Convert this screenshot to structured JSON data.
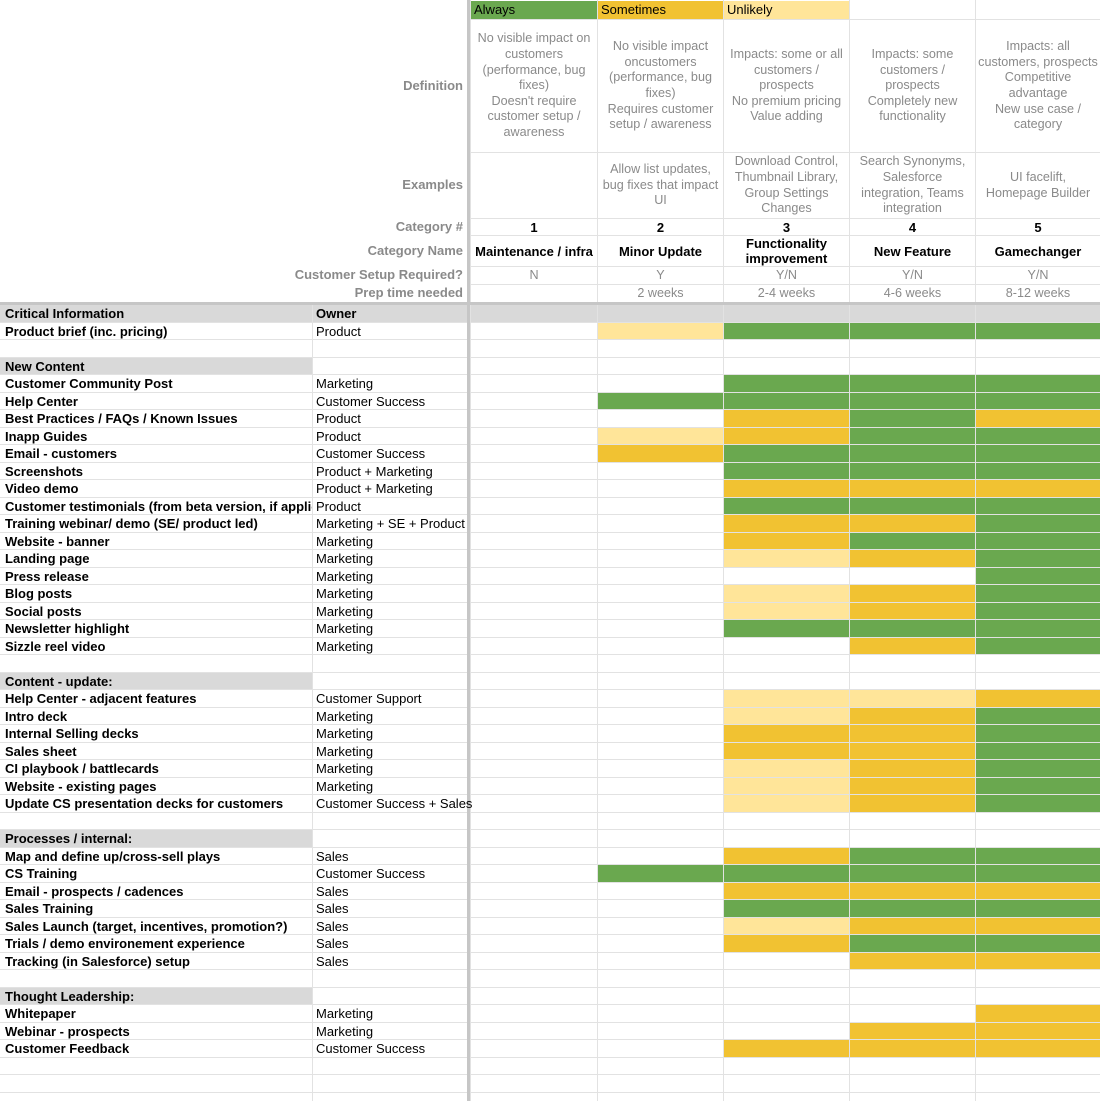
{
  "legend": [
    {
      "label": "Always",
      "color": "#6aa84f"
    },
    {
      "label": "Sometimes",
      "color": "#f1c232"
    },
    {
      "label": "Unlikely",
      "color": "#ffe599"
    }
  ],
  "header_labels": {
    "definition": "Definition",
    "examples": "Examples",
    "category_num": "Category #",
    "category_name": "Category Name",
    "setup": "Customer Setup Required?",
    "prep": "Prep time needed"
  },
  "categories": [
    {
      "definition": "No visible impact on customers (performance, bug fixes)\nDoesn't require customer setup / awareness",
      "examples": "",
      "num": "1",
      "name": "Maintenance / infra",
      "setup": "N",
      "prep": ""
    },
    {
      "definition": "No visible impact oncustomers (performance, bug fixes)\nRequires customer setup / awareness",
      "examples": "Allow list updates, bug fixes that impact UI",
      "num": "2",
      "name": "Minor Update",
      "setup": "Y",
      "prep": "2 weeks"
    },
    {
      "definition": "Impacts: some or all customers / prospects\nNo premium pricing\nValue adding",
      "examples": "Download Control, Thumbnail Library, Group Settings Changes",
      "num": "3",
      "name": "Functionality improvement",
      "setup": "Y/N",
      "prep": "2-4 weeks"
    },
    {
      "definition": "Impacts: some customers / prospects\nCompletely new functionality",
      "examples": "Search Synonyms, Salesforce integration, Teams integration",
      "num": "4",
      "name": "New Feature",
      "setup": "Y/N",
      "prep": "4-6 weeks"
    },
    {
      "definition": "Impacts: all customers, prospects\nCompetitive advantage\nNew use case / category",
      "examples": "UI facelift, Homepage Builder",
      "num": "5",
      "name": "Gamechanger",
      "setup": "Y/N",
      "prep": "8-12 weeks"
    }
  ],
  "rows": [
    {
      "task": "Critical Information",
      "owner": "Owner",
      "type": "section"
    },
    {
      "task": "Product brief (inc. pricing)",
      "owner": "Product",
      "levels": [
        0,
        3,
        1,
        1,
        1
      ]
    },
    {
      "task": "",
      "owner": "",
      "type": "blank"
    },
    {
      "task": "New Content",
      "owner": "",
      "type": "section"
    },
    {
      "task": "Customer Community Post",
      "owner": "Marketing",
      "levels": [
        0,
        0,
        1,
        1,
        1
      ]
    },
    {
      "task": "Help Center",
      "owner": "Customer Success",
      "levels": [
        0,
        1,
        1,
        1,
        1
      ]
    },
    {
      "task": "Best Practices / FAQs / Known Issues",
      "owner": "Product",
      "levels": [
        0,
        0,
        2,
        1,
        2
      ]
    },
    {
      "task": "Inapp Guides",
      "owner": "Product",
      "levels": [
        0,
        3,
        2,
        1,
        1
      ]
    },
    {
      "task": "Email - customers",
      "owner": "Customer Success",
      "levels": [
        0,
        2,
        1,
        1,
        1
      ]
    },
    {
      "task": "Screenshots",
      "owner": "Product + Marketing",
      "levels": [
        0,
        0,
        1,
        1,
        1
      ]
    },
    {
      "task": "Video demo",
      "owner": "Product + Marketing",
      "levels": [
        0,
        0,
        2,
        2,
        2
      ]
    },
    {
      "task": "Customer testimonials (from beta version, if applicable)",
      "owner": "Product",
      "levels": [
        0,
        0,
        1,
        1,
        1
      ]
    },
    {
      "task": "Training webinar/ demo (SE/ product led)",
      "owner": "Marketing + SE + Product",
      "levels": [
        0,
        0,
        2,
        2,
        1
      ]
    },
    {
      "task": "Website - banner",
      "owner": "Marketing",
      "levels": [
        0,
        0,
        2,
        1,
        1
      ]
    },
    {
      "task": "Landing page",
      "owner": "Marketing",
      "levels": [
        0,
        0,
        3,
        2,
        1
      ]
    },
    {
      "task": "Press release",
      "owner": "Marketing",
      "levels": [
        0,
        0,
        0,
        0,
        1
      ]
    },
    {
      "task": "Blog posts",
      "owner": "Marketing",
      "levels": [
        0,
        0,
        3,
        2,
        1
      ]
    },
    {
      "task": "Social posts",
      "owner": "Marketing",
      "levels": [
        0,
        0,
        3,
        2,
        1
      ]
    },
    {
      "task": "Newsletter highlight",
      "owner": "Marketing",
      "levels": [
        0,
        0,
        1,
        1,
        1
      ]
    },
    {
      "task": "Sizzle reel video",
      "owner": "Marketing",
      "levels": [
        0,
        0,
        0,
        2,
        1
      ]
    },
    {
      "task": "",
      "owner": "",
      "type": "blank"
    },
    {
      "task": "Content - update:",
      "owner": "",
      "type": "section"
    },
    {
      "task": "Help Center - adjacent features",
      "owner": "Customer Support",
      "levels": [
        0,
        0,
        3,
        3,
        2
      ]
    },
    {
      "task": "Intro deck",
      "owner": "Marketing",
      "levels": [
        0,
        0,
        3,
        2,
        1
      ]
    },
    {
      "task": "Internal Selling decks",
      "owner": "Marketing",
      "levels": [
        0,
        0,
        2,
        2,
        1
      ]
    },
    {
      "task": "Sales sheet",
      "owner": "Marketing",
      "levels": [
        0,
        0,
        2,
        2,
        1
      ]
    },
    {
      "task": "CI playbook / battlecards",
      "owner": "Marketing",
      "levels": [
        0,
        0,
        3,
        2,
        1
      ]
    },
    {
      "task": "Website - existing pages",
      "owner": "Marketing",
      "levels": [
        0,
        0,
        3,
        2,
        1
      ]
    },
    {
      "task": "Update CS presentation decks for customers",
      "owner": "Customer Success + Sales",
      "levels": [
        0,
        0,
        3,
        2,
        1
      ]
    },
    {
      "task": "",
      "owner": "",
      "type": "blank"
    },
    {
      "task": "Processes / internal:",
      "owner": "",
      "type": "section"
    },
    {
      "task": "Map and define up/cross-sell plays",
      "owner": "Sales",
      "levels": [
        0,
        0,
        2,
        1,
        1
      ]
    },
    {
      "task": "CS Training",
      "owner": "Customer Success",
      "levels": [
        0,
        1,
        1,
        1,
        1
      ]
    },
    {
      "task": "Email - prospects / cadences",
      "owner": "Sales",
      "levels": [
        0,
        0,
        2,
        2,
        2
      ]
    },
    {
      "task": "Sales Training",
      "owner": "Sales",
      "levels": [
        0,
        0,
        1,
        1,
        1
      ]
    },
    {
      "task": "Sales Launch (target, incentives, promotion?)",
      "owner": "Sales",
      "levels": [
        0,
        0,
        3,
        2,
        2
      ]
    },
    {
      "task": "Trials / demo environement experience",
      "owner": "Sales",
      "levels": [
        0,
        0,
        2,
        1,
        1
      ]
    },
    {
      "task": "Tracking (in Salesforce) setup",
      "owner": "Sales",
      "levels": [
        0,
        0,
        0,
        2,
        2
      ]
    },
    {
      "task": "",
      "owner": "",
      "type": "blank"
    },
    {
      "task": "Thought Leadership:",
      "owner": "",
      "type": "section"
    },
    {
      "task": "Whitepaper",
      "owner": "Marketing",
      "levels": [
        0,
        0,
        0,
        0,
        2
      ]
    },
    {
      "task": "Webinar - prospects",
      "owner": "Marketing",
      "levels": [
        0,
        0,
        0,
        2,
        2
      ]
    },
    {
      "task": "Customer Feedback",
      "owner": "Customer Success",
      "levels": [
        0,
        0,
        2,
        2,
        2
      ]
    }
  ]
}
